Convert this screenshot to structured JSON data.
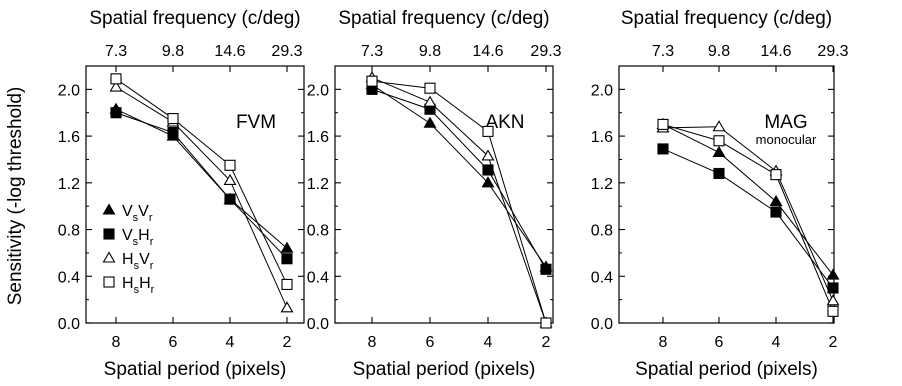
{
  "figure": {
    "ylabel": "Sensitivity (-log threshold)"
  },
  "chart_data": [
    {
      "type": "line",
      "panel": "FVM",
      "subtitle": "",
      "top_axis_label": "Spatial frequency (c/deg)",
      "top_ticks": [
        "7.3",
        "9.8",
        "14.6",
        "29.3"
      ],
      "xlabel": "Spatial period (pixels)",
      "ylabel": "Sensitivity (-log threshold)",
      "x": [
        8,
        6,
        4,
        2
      ],
      "x_tick_labels": [
        "8",
        "6",
        "4",
        "2"
      ],
      "y_ticks": [
        "0.0",
        "0.4",
        "0.8",
        "1.2",
        "1.6",
        "2.0"
      ],
      "ylim": [
        0,
        2.2
      ],
      "legend_position": "lower-left",
      "series": [
        {
          "key": "VsVr",
          "main1": "V",
          "sub1": "s",
          "main2": "V",
          "sub2": "r",
          "marker": "filled-triangle",
          "values": [
            1.83,
            1.6,
            1.06,
            0.64
          ]
        },
        {
          "key": "VsHr",
          "main1": "V",
          "sub1": "s",
          "main2": "H",
          "sub2": "r",
          "marker": "filled-square",
          "values": [
            1.8,
            1.63,
            1.06,
            0.55
          ]
        },
        {
          "key": "HsVr",
          "main1": "H",
          "sub1": "s",
          "main2": "V",
          "sub2": "r",
          "marker": "open-triangle",
          "values": [
            2.02,
            1.72,
            1.22,
            0.13
          ]
        },
        {
          "key": "HsHr",
          "main1": "H",
          "sub1": "s",
          "main2": "H",
          "sub2": "r",
          "marker": "open-square",
          "values": [
            2.09,
            1.75,
            1.35,
            0.33
          ]
        }
      ]
    },
    {
      "type": "line",
      "panel": "AKN",
      "subtitle": "",
      "top_axis_label": "Spatial frequency (c/deg)",
      "top_ticks": [
        "7.3",
        "9.8",
        "14.6",
        "29.3"
      ],
      "xlabel": "Spatial period (pixels)",
      "ylabel": "",
      "x": [
        8,
        6,
        4,
        2
      ],
      "x_tick_labels": [
        "8",
        "6",
        "4",
        "2"
      ],
      "y_ticks": [
        "0.0",
        "0.4",
        "0.8",
        "1.2",
        "1.6",
        "2.0"
      ],
      "ylim": [
        0,
        2.2
      ],
      "series": [
        {
          "key": "VsVr",
          "marker": "filled-triangle",
          "values": [
            2.04,
            1.71,
            1.2,
            0.48
          ]
        },
        {
          "key": "VsHr",
          "marker": "filled-square",
          "values": [
            2.0,
            1.83,
            1.31,
            0.46
          ]
        },
        {
          "key": "HsVr",
          "marker": "open-triangle",
          "values": [
            2.1,
            1.89,
            1.43,
            0.0
          ]
        },
        {
          "key": "HsHr",
          "marker": "open-square",
          "values": [
            2.07,
            2.01,
            1.64,
            0.0
          ]
        }
      ]
    },
    {
      "type": "line",
      "panel": "MAG",
      "subtitle": "monocular",
      "top_axis_label": "Spatial frequency (c/deg)",
      "top_ticks": [
        "7.3",
        "9.8",
        "14.6",
        "29.3"
      ],
      "xlabel": "Spatial period (pixels)",
      "ylabel": "",
      "x": [
        8,
        6,
        4,
        2
      ],
      "x_tick_labels": [
        "8",
        "6",
        "4",
        "2"
      ],
      "y_ticks": [
        "0.0",
        "0.4",
        "0.8",
        "1.2",
        "1.6",
        "2.0"
      ],
      "ylim": [
        0,
        2.2
      ],
      "series": [
        {
          "key": "VsVr",
          "marker": "filled-triangle",
          "values": [
            1.7,
            1.46,
            1.04,
            0.41
          ]
        },
        {
          "key": "VsHr",
          "marker": "filled-square",
          "values": [
            1.49,
            1.28,
            0.95,
            0.3
          ]
        },
        {
          "key": "HsVr",
          "marker": "open-triangle",
          "values": [
            1.67,
            1.68,
            1.3,
            0.19
          ]
        },
        {
          "key": "HsHr",
          "marker": "open-square",
          "values": [
            1.7,
            1.56,
            1.27,
            0.1
          ]
        }
      ]
    }
  ]
}
